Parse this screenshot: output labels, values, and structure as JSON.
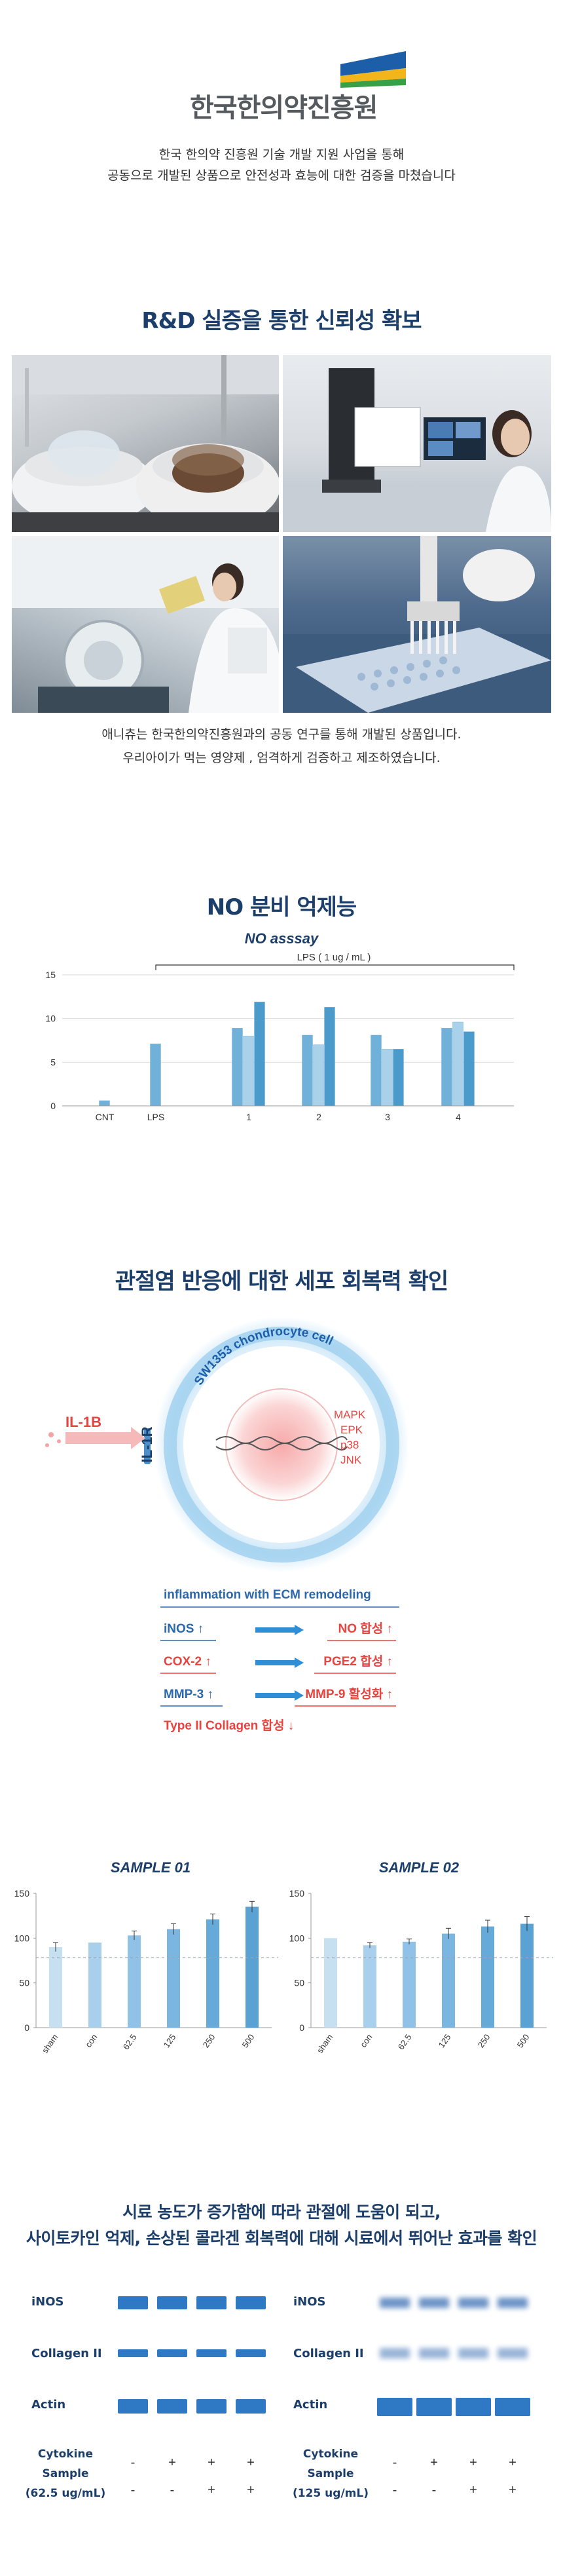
{
  "logo": {
    "name": "한국한의약진흥원",
    "colors": [
      "#1c5fa8",
      "#f2b51c",
      "#38a148"
    ]
  },
  "intro": {
    "line1": "한국 한의약 진흥원 기술 개발 지원 사업을 통해",
    "line2": "공동으로 개발된 상품으로 안전성과 효능에 대한 검증을 마쳤습니다"
  },
  "rnd": {
    "title": "R&D 실증을 통한 신뢰성 확보",
    "caption_line1": "애니츄는 한국한의약진흥원과의 공동 연구를 통해 개발된 상품입니다.",
    "caption_line2": "우리아이가 먹는 영양제 , 엄격하게 검증하고 제조하였습니다."
  },
  "no": {
    "title": "NO 분비 억제능",
    "subtitle": "NO asssay",
    "bracket_label": "LPS ( 1 ug / mL )"
  },
  "chart_data": [
    {
      "type": "bar",
      "title": "NO asssay",
      "categories": [
        "CNT",
        "LPS",
        "1",
        "2",
        "3",
        "4"
      ],
      "series": [
        {
          "values": [
            0.6,
            7.1,
            8.9,
            8.1,
            8.1,
            8.9
          ]
        },
        {
          "values": [
            null,
            null,
            8.0,
            7.0,
            6.5,
            9.6
          ]
        },
        {
          "values": [
            null,
            null,
            11.9,
            11.3,
            6.5,
            8.5
          ]
        }
      ],
      "yticks": [
        0,
        5,
        10,
        15
      ],
      "ylim": [
        0,
        15
      ]
    },
    {
      "type": "bar",
      "title": "SAMPLE 01",
      "categories": [
        "sham",
        "con",
        "62.5",
        "125",
        "250",
        "500"
      ],
      "values": [
        90,
        95,
        103,
        110,
        121,
        135
      ],
      "error": [
        5,
        0,
        5,
        6,
        6,
        6
      ],
      "reference": 78,
      "yticks": [
        0,
        50,
        100,
        150
      ],
      "ylim": [
        0,
        150
      ]
    },
    {
      "type": "bar",
      "title": "SAMPLE 02",
      "categories": [
        "sham",
        "con",
        "62.5",
        "125",
        "250",
        "500"
      ],
      "values": [
        100,
        92,
        96,
        105,
        113,
        116
      ],
      "error": [
        0,
        3,
        3,
        6,
        7,
        8
      ],
      "reference": 78,
      "yticks": [
        0,
        50,
        100,
        150
      ],
      "ylim": [
        0,
        150
      ]
    }
  ],
  "cell": {
    "title": "관절염 반응에 대한 세포 회복력 확인",
    "cell_name": "SW1353 chondrocyte cell",
    "ligand": "IL-1B",
    "receptor": "IL-1R",
    "pathways": [
      "MAPK",
      "EPK",
      "p38",
      "JNK"
    ],
    "header": "inflammation with ECM remodeling",
    "rows": [
      {
        "left": "iNOS ↑",
        "right": "NO 합성 ↑"
      },
      {
        "left": "COX-2 ↑",
        "right": "PGE2 합성 ↑"
      },
      {
        "left": "MMP-3 ↑",
        "right": "MMP-9 활성화 ↑"
      }
    ],
    "footer": "Type II Collagen 합성 ↓"
  },
  "final": {
    "line1": "시료 농도가 증가함에 따라 관절에 도움이 되고,",
    "line2": "사이토카인 억제, 손상된 콜라겐 회복력에 대해 시료에서 뛰어난 효과를 확인"
  },
  "blot": {
    "labels": [
      "iNOS",
      "Collagen II",
      "Actin"
    ],
    "cytokine": "Cytokine",
    "sample": "Sample",
    "left_conc": "(62.5 ug/mL)",
    "right_conc": "(125 ug/mL)",
    "cytokine_signs": [
      "-",
      "+",
      "+",
      "+"
    ],
    "sample_signs": [
      "-",
      "-",
      "+",
      "+"
    ]
  },
  "colors": {
    "navy": "#1c3e6a",
    "red": "#e8433f",
    "blue": "#2f78c4",
    "bar_light": "#a9d1ea",
    "bar_mid": "#6fb1d9",
    "bar_dark": "#4a9bcc"
  }
}
